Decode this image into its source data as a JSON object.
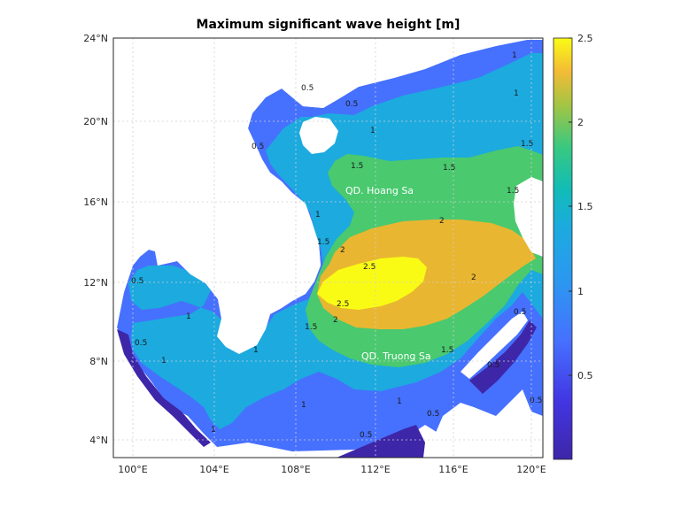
{
  "title": "Maximum significant wave height [m]",
  "longitude_ticks": [
    "100°E",
    "104°E",
    "108°E",
    "112°E",
    "116°E",
    "120°E"
  ],
  "latitude_ticks": [
    "24°N",
    "20°N",
    "16°N",
    "12°N",
    "8°N",
    "4°N"
  ],
  "colorbar": {
    "ticks": [
      "2.5",
      "2",
      "1.5",
      "1",
      "0.5"
    ],
    "range": [
      0,
      2.5
    ],
    "colors": [
      "#3e26a8",
      "#4670fe",
      "#1caadf",
      "#2fc6a6",
      "#4ac96f",
      "#e9b631",
      "#f9fb15"
    ]
  },
  "places": {
    "paracel": "QD. Hoang Sa",
    "spratly": "QD. Truong Sa"
  },
  "contour_labels": [
    "0.5",
    "1",
    "1.5",
    "2",
    "2.5"
  ],
  "colors": {
    "land": "#ffffff",
    "low": "#3e26a8",
    "medium_low": "#4670fe",
    "medium": "#1caadf",
    "medium_high": "#4ac96f",
    "high": "#e9b631",
    "max": "#f9fb15"
  }
}
